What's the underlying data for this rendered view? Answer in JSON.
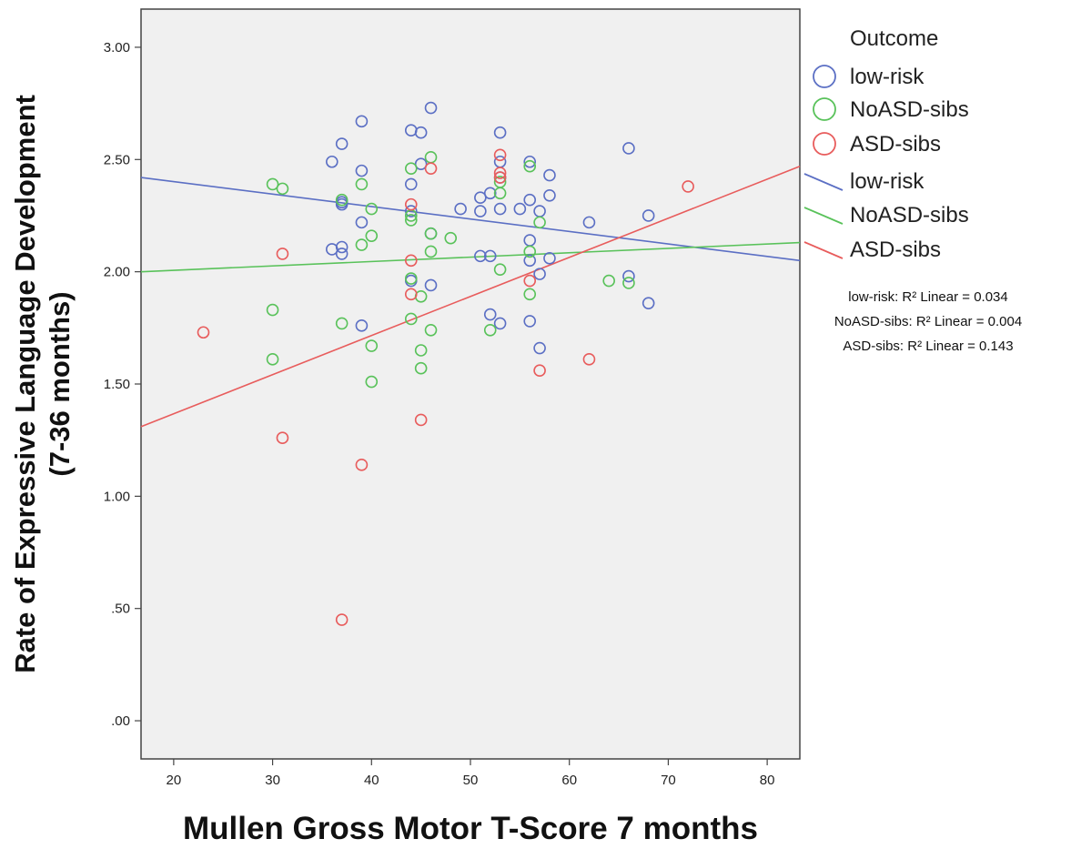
{
  "chart_data": {
    "type": "scatter",
    "title": "",
    "xlabel": "Mullen Gross Motor T-Score 7 months",
    "ylabel_line1": "Rate of Expressive Language Development",
    "ylabel_line2": "(7-36 months)",
    "xlim": [
      16.7,
      83.3
    ],
    "ylim": [
      -0.17,
      3.17
    ],
    "x_ticks": [
      20,
      30,
      40,
      50,
      60,
      70,
      80
    ],
    "x_tick_labels": [
      "20",
      "30",
      "40",
      "50",
      "60",
      "70",
      "80"
    ],
    "y_ticks": [
      0,
      0.5,
      1.0,
      1.5,
      2.0,
      2.5,
      3.0
    ],
    "y_tick_labels": [
      ".00",
      ".50",
      "1.00",
      "1.50",
      "2.00",
      "2.50",
      "3.00"
    ],
    "grid": false,
    "plot_background": "#f0f0f0",
    "legend": {
      "title": "Outcome",
      "placement": "right",
      "marker_entries": [
        "low-risk",
        "NoASD-sibs",
        "ASD-sibs"
      ],
      "line_entries": [
        "low-risk",
        "NoASD-sibs",
        "ASD-sibs"
      ]
    },
    "r2_labels": [
      {
        "series": "low-risk",
        "text": "low-risk: R² Linear = 0.034"
      },
      {
        "series": "NoASD-sibs",
        "text": "NoASD-sibs: R² Linear = 0.004"
      },
      {
        "series": "ASD-sibs",
        "text": "ASD-sibs: R² Linear = 0.143"
      }
    ],
    "series": [
      {
        "name": "low-risk",
        "color": "#5b6fc4",
        "fit": {
          "x": [
            16.7,
            83.3
          ],
          "y": [
            2.42,
            2.05
          ]
        },
        "points": [
          [
            36,
            2.49
          ],
          [
            37,
            2.57
          ],
          [
            39,
            2.67
          ],
          [
            39,
            2.45
          ],
          [
            37,
            2.31
          ],
          [
            37,
            2.3
          ],
          [
            39,
            2.22
          ],
          [
            36,
            2.1
          ],
          [
            37,
            2.11
          ],
          [
            37,
            2.08
          ],
          [
            39,
            1.76
          ],
          [
            44,
            2.63
          ],
          [
            45,
            2.62
          ],
          [
            46,
            2.73
          ],
          [
            44,
            2.39
          ],
          [
            45,
            2.48
          ],
          [
            44,
            2.27
          ],
          [
            46,
            2.17
          ],
          [
            44,
            1.96
          ],
          [
            46,
            1.94
          ],
          [
            49,
            2.28
          ],
          [
            51,
            2.33
          ],
          [
            51,
            2.27
          ],
          [
            52,
            2.35
          ],
          [
            51,
            2.07
          ],
          [
            52,
            2.07
          ],
          [
            53,
            2.62
          ],
          [
            53,
            2.49
          ],
          [
            53,
            2.42
          ],
          [
            53,
            2.28
          ],
          [
            55,
            2.28
          ],
          [
            52,
            1.81
          ],
          [
            53,
            1.77
          ],
          [
            56,
            2.49
          ],
          [
            56,
            2.32
          ],
          [
            57,
            2.27
          ],
          [
            56,
            2.14
          ],
          [
            56,
            2.05
          ],
          [
            57,
            1.99
          ],
          [
            58,
            2.06
          ],
          [
            56,
            1.78
          ],
          [
            57,
            1.66
          ],
          [
            58,
            2.43
          ],
          [
            58,
            2.34
          ],
          [
            62,
            2.22
          ],
          [
            66,
            2.55
          ],
          [
            66,
            1.98
          ],
          [
            68,
            2.25
          ],
          [
            68,
            1.86
          ]
        ]
      },
      {
        "name": "NoASD-sibs",
        "color": "#59c25a",
        "fit": {
          "x": [
            16.7,
            83.3
          ],
          "y": [
            2.0,
            2.13
          ]
        },
        "points": [
          [
            30,
            2.39
          ],
          [
            31,
            2.37
          ],
          [
            30,
            1.83
          ],
          [
            30,
            1.61
          ],
          [
            37,
            2.32
          ],
          [
            37,
            1.77
          ],
          [
            39,
            2.39
          ],
          [
            39,
            2.12
          ],
          [
            40,
            2.28
          ],
          [
            40,
            2.16
          ],
          [
            40,
            1.67
          ],
          [
            40,
            1.51
          ],
          [
            44,
            2.46
          ],
          [
            44,
            2.25
          ],
          [
            44,
            2.23
          ],
          [
            44,
            1.97
          ],
          [
            44,
            1.79
          ],
          [
            45,
            1.89
          ],
          [
            45,
            1.65
          ],
          [
            45,
            1.57
          ],
          [
            46,
            2.51
          ],
          [
            46,
            2.17
          ],
          [
            46,
            2.09
          ],
          [
            46,
            1.74
          ],
          [
            48,
            2.15
          ],
          [
            52,
            1.74
          ],
          [
            53,
            2.4
          ],
          [
            53,
            2.35
          ],
          [
            53,
            2.01
          ],
          [
            56,
            2.47
          ],
          [
            56,
            2.09
          ],
          [
            56,
            1.9
          ],
          [
            57,
            2.22
          ],
          [
            64,
            1.96
          ],
          [
            66,
            1.95
          ]
        ]
      },
      {
        "name": "ASD-sibs",
        "color": "#e85c5c",
        "fit": {
          "x": [
            16.7,
            83.3
          ],
          "y": [
            1.31,
            2.47
          ]
        },
        "points": [
          [
            23,
            1.73
          ],
          [
            31,
            2.08
          ],
          [
            31,
            1.26
          ],
          [
            37,
            0.45
          ],
          [
            39,
            1.14
          ],
          [
            44,
            2.3
          ],
          [
            44,
            2.05
          ],
          [
            44,
            1.9
          ],
          [
            45,
            1.34
          ],
          [
            46,
            2.46
          ],
          [
            53,
            2.52
          ],
          [
            53,
            2.44
          ],
          [
            53,
            2.42
          ],
          [
            56,
            1.96
          ],
          [
            57,
            1.56
          ],
          [
            62,
            1.61
          ],
          [
            72,
            2.38
          ]
        ]
      }
    ]
  }
}
